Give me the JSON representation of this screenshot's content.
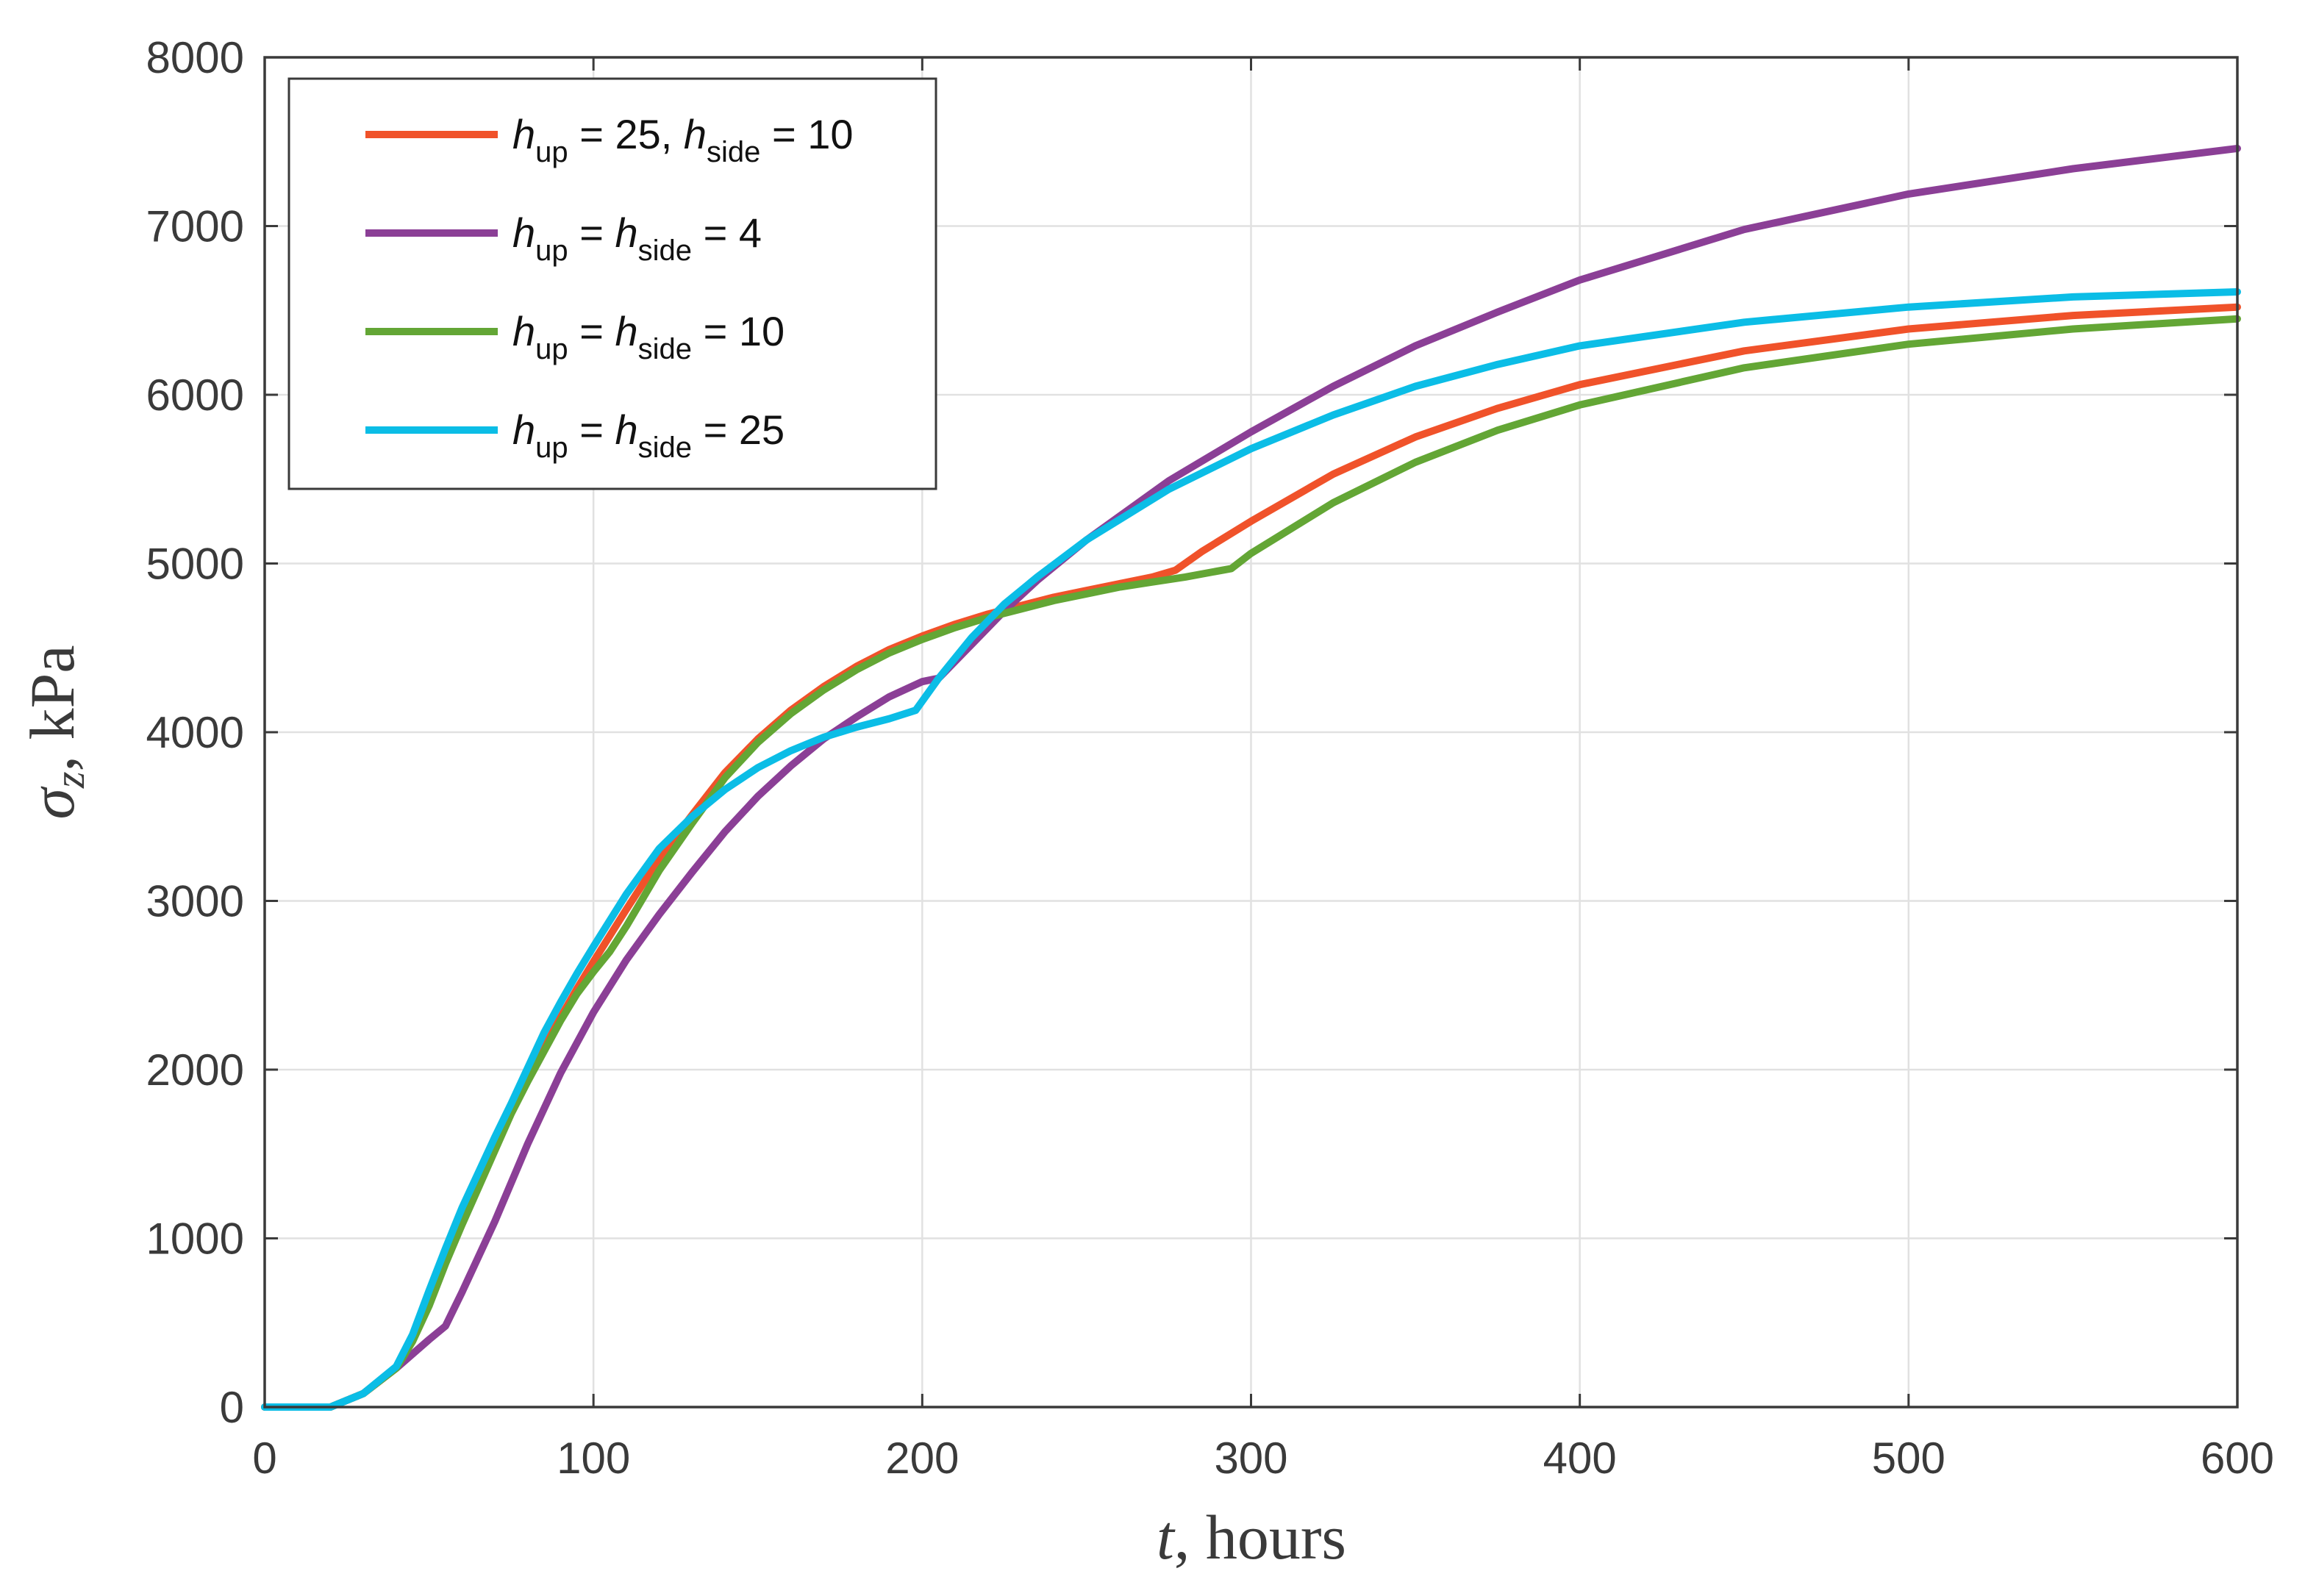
{
  "chart_data": {
    "type": "line",
    "xlabel": "t, hours",
    "xlabel_var": "t",
    "xlabel_rest": ", hours",
    "ylabel": "σz, kPa",
    "ylabel_sym": "σ",
    "ylabel_sub": "z",
    "ylabel_rest": ", kPa",
    "xlim": [
      0,
      600
    ],
    "ylim": [
      0,
      8000
    ],
    "xticks": [
      0,
      100,
      200,
      300,
      400,
      500,
      600
    ],
    "yticks": [
      0,
      1000,
      2000,
      3000,
      4000,
      5000,
      6000,
      7000,
      8000
    ],
    "grid": true,
    "legend_position": "top-left",
    "series": [
      {
        "name": "h_up = 25, h_side = 10",
        "color": "#f0522a",
        "legend": [
          {
            "t": "h",
            "style": "italic"
          },
          {
            "t": "up",
            "style": "sub"
          },
          {
            "t": " = 25, ",
            "style": "normal"
          },
          {
            "t": "h",
            "style": "italic"
          },
          {
            "t": "side",
            "style": "sub"
          },
          {
            "t": " = 10",
            "style": "normal"
          }
        ],
        "x": [
          0,
          10,
          20,
          30,
          40,
          45,
          50,
          55,
          60,
          65,
          70,
          75,
          80,
          85,
          90,
          95,
          100,
          110,
          120,
          130,
          140,
          150,
          160,
          170,
          180,
          190,
          200,
          210,
          220,
          230,
          240,
          250,
          260,
          270,
          277,
          285,
          300,
          325,
          350,
          375,
          400,
          450,
          500,
          550,
          600
        ],
        "y": [
          0,
          0,
          0,
          80,
          230,
          400,
          650,
          900,
          1130,
          1330,
          1550,
          1760,
          1940,
          2130,
          2310,
          2480,
          2640,
          2950,
          3250,
          3510,
          3760,
          3960,
          4130,
          4270,
          4390,
          4490,
          4570,
          4640,
          4700,
          4750,
          4800,
          4840,
          4880,
          4920,
          4960,
          5070,
          5250,
          5530,
          5750,
          5920,
          6060,
          6260,
          6390,
          6470,
          6520
        ]
      },
      {
        "name": "h_up = h_side = 4",
        "color": "#8b3f96",
        "legend": [
          {
            "t": "h",
            "style": "italic"
          },
          {
            "t": "up",
            "style": "sub"
          },
          {
            "t": " = ",
            "style": "normal"
          },
          {
            "t": "h",
            "style": "italic"
          },
          {
            "t": "side",
            "style": "sub"
          },
          {
            "t": " = 4",
            "style": "normal"
          }
        ],
        "x": [
          0,
          10,
          20,
          30,
          40,
          50,
          55,
          60,
          70,
          80,
          90,
          100,
          110,
          120,
          130,
          140,
          150,
          160,
          170,
          180,
          190,
          200,
          205,
          215,
          225,
          235,
          250,
          275,
          300,
          325,
          350,
          375,
          400,
          450,
          500,
          550,
          600
        ],
        "y": [
          0,
          0,
          0,
          80,
          230,
          400,
          480,
          680,
          1100,
          1560,
          1980,
          2340,
          2650,
          2920,
          3170,
          3410,
          3620,
          3800,
          3960,
          4090,
          4210,
          4300,
          4320,
          4520,
          4720,
          4900,
          5140,
          5490,
          5780,
          6050,
          6290,
          6490,
          6680,
          6980,
          7190,
          7340,
          7460
        ]
      },
      {
        "name": "h_up = h_side = 10",
        "color": "#63a635",
        "legend": [
          {
            "t": "h",
            "style": "italic"
          },
          {
            "t": "up",
            "style": "sub"
          },
          {
            "t": " = ",
            "style": "normal"
          },
          {
            "t": "h",
            "style": "italic"
          },
          {
            "t": "side",
            "style": "sub"
          },
          {
            "t": " = 10",
            "style": "normal"
          }
        ],
        "x": [
          0,
          10,
          20,
          30,
          40,
          45,
          50,
          55,
          60,
          65,
          70,
          75,
          80,
          85,
          90,
          95,
          100,
          105,
          110,
          120,
          130,
          140,
          150,
          160,
          170,
          180,
          190,
          200,
          210,
          220,
          230,
          240,
          250,
          260,
          270,
          280,
          294,
          300,
          325,
          350,
          375,
          400,
          450,
          500,
          550,
          600
        ],
        "y": [
          0,
          0,
          0,
          80,
          230,
          390,
          600,
          850,
          1080,
          1300,
          1520,
          1740,
          1930,
          2110,
          2290,
          2450,
          2580,
          2700,
          2850,
          3180,
          3460,
          3730,
          3940,
          4110,
          4250,
          4370,
          4470,
          4550,
          4620,
          4680,
          4730,
          4780,
          4820,
          4860,
          4890,
          4920,
          4970,
          5060,
          5360,
          5600,
          5790,
          5940,
          6160,
          6300,
          6390,
          6450
        ]
      },
      {
        "name": "h_up = h_side = 25",
        "color": "#0bbde6",
        "legend": [
          {
            "t": "h",
            "style": "italic"
          },
          {
            "t": "up",
            "style": "sub"
          },
          {
            "t": " = ",
            "style": "normal"
          },
          {
            "t": "h",
            "style": "italic"
          },
          {
            "t": "side",
            "style": "sub"
          },
          {
            "t": " = 25",
            "style": "normal"
          }
        ],
        "x": [
          0,
          10,
          20,
          30,
          40,
          45,
          50,
          55,
          60,
          65,
          70,
          75,
          80,
          85,
          90,
          95,
          100,
          110,
          120,
          130,
          140,
          150,
          160,
          170,
          180,
          190,
          198,
          205,
          215,
          225,
          235,
          250,
          275,
          300,
          325,
          350,
          375,
          400,
          450,
          500,
          550,
          600
        ],
        "y": [
          0,
          0,
          0,
          80,
          240,
          430,
          690,
          940,
          1180,
          1390,
          1600,
          1800,
          2010,
          2220,
          2400,
          2570,
          2730,
          3040,
          3310,
          3500,
          3660,
          3790,
          3890,
          3970,
          4030,
          4080,
          4130,
          4320,
          4560,
          4760,
          4920,
          5140,
          5440,
          5680,
          5880,
          6050,
          6180,
          6290,
          6430,
          6520,
          6580,
          6610
        ]
      }
    ]
  }
}
